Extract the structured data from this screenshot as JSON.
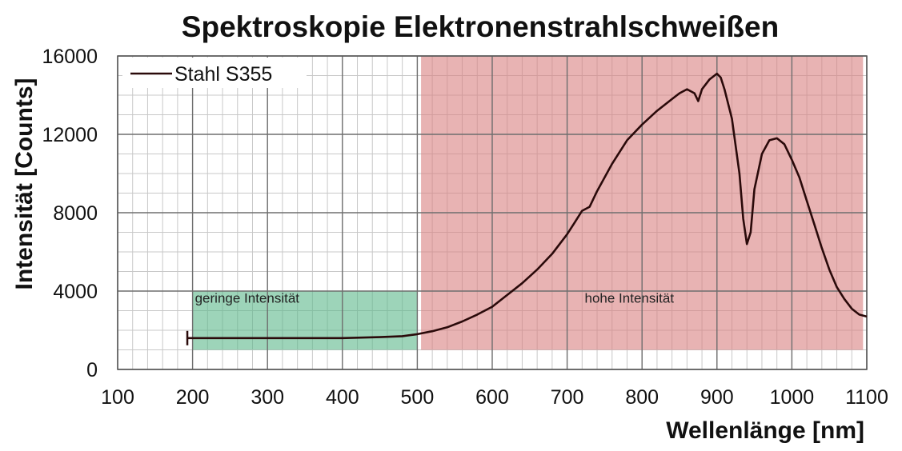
{
  "chart_data": {
    "type": "line",
    "title": "Spektroskopie Elektronenstrahlschweißen",
    "xlabel": "Wellenlänge  [nm]",
    "ylabel": "Intensität  [Counts]",
    "xlim": [
      100,
      1100
    ],
    "ylim": [
      0,
      16000
    ],
    "xticks": [
      100,
      200,
      300,
      400,
      500,
      600,
      700,
      800,
      900,
      1000,
      1100
    ],
    "yticks": [
      0,
      4000,
      8000,
      12000,
      16000
    ],
    "grid": true,
    "legend_position": "top-left",
    "series": [
      {
        "name": "Stahl S355",
        "color": "#2a0a0a",
        "x": [
          193,
          200,
          250,
          300,
          350,
          400,
          450,
          480,
          500,
          520,
          540,
          560,
          580,
          600,
          620,
          640,
          660,
          680,
          700,
          710,
          720,
          730,
          740,
          760,
          780,
          800,
          820,
          840,
          850,
          860,
          870,
          875,
          880,
          890,
          900,
          905,
          910,
          920,
          930,
          935,
          940,
          945,
          950,
          960,
          970,
          980,
          990,
          1000,
          1010,
          1020,
          1030,
          1040,
          1050,
          1060,
          1070,
          1080,
          1090,
          1100
        ],
        "y": [
          1600,
          1600,
          1600,
          1600,
          1600,
          1600,
          1650,
          1700,
          1800,
          1950,
          2150,
          2450,
          2800,
          3200,
          3800,
          4400,
          5100,
          5900,
          6900,
          7500,
          8100,
          8300,
          9100,
          10500,
          11700,
          12500,
          13200,
          13800,
          14100,
          14300,
          14100,
          13700,
          14300,
          14800,
          15100,
          14900,
          14300,
          12800,
          10000,
          7700,
          6400,
          7000,
          9200,
          11000,
          11700,
          11800,
          11500,
          10700,
          9800,
          8600,
          7400,
          6200,
          5100,
          4200,
          3600,
          3100,
          2800,
          2700
        ]
      }
    ],
    "regions": [
      {
        "label": "geringe Intensität",
        "x_range": [
          200,
          500
        ],
        "y_range": [
          1000,
          4000
        ],
        "color": "#5cb88a"
      },
      {
        "label": "hohe Intensität",
        "x_range": [
          505,
          1095
        ],
        "y_range": [
          1000,
          16000
        ],
        "color": "#d98080"
      }
    ]
  }
}
